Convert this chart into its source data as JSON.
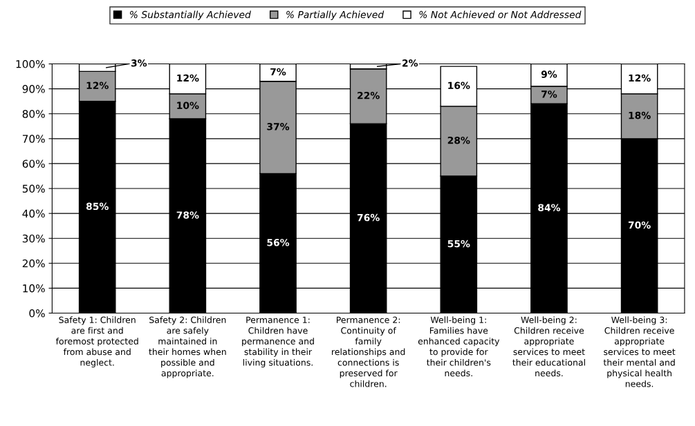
{
  "chart_data": {
    "type": "bar",
    "stacked": true,
    "categories": [
      "Safety 1: Children are first and foremost protected from abuse and neglect.",
      "Safety 2: Children are safely maintained in their homes when possible and appropriate.",
      "Permanence 1: Children have permanence and stability in their living situations.",
      "Permanence 2: Continuity of family relationships and connections is preserved for children.",
      "Well-being 1: Families have enhanced capacity to provide for their children's needs.",
      "Well-being 2: Children receive appropriate services to meet their educational needs.",
      "Well-being 3: Children receive appropriate services to meet their mental and physical health needs."
    ],
    "series": [
      {
        "name": "% Substantially Achieved",
        "color": "#000000",
        "values": [
          85,
          78,
          56,
          76,
          55,
          84,
          70
        ],
        "value_labels": [
          "85%",
          "78%",
          "56%",
          "76%",
          "55%",
          "84%",
          "70%"
        ]
      },
      {
        "name": "% Partially Achieved",
        "color": "#999999",
        "values": [
          12,
          10,
          37,
          22,
          28,
          7,
          18
        ],
        "value_labels": [
          "12%",
          "10%",
          "37%",
          "22%",
          "28%",
          "7%",
          "18%"
        ]
      },
      {
        "name": "% Not Achieved or Not Addressed",
        "color": "#ffffff",
        "values": [
          3,
          12,
          7,
          2,
          16,
          9,
          12
        ],
        "value_labels": [
          "3%",
          "12%",
          "7%",
          "2%",
          "16%",
          "9%",
          "12%"
        ]
      }
    ],
    "ylim": [
      0,
      100
    ],
    "yticks": [
      {
        "value": 0,
        "label": "0%"
      },
      {
        "value": 10,
        "label": "10%"
      },
      {
        "value": 20,
        "label": "20%"
      },
      {
        "value": 30,
        "label": "30%"
      },
      {
        "value": 40,
        "label": "40%"
      },
      {
        "value": 50,
        "label": "50%"
      },
      {
        "value": 60,
        "label": "60%"
      },
      {
        "value": 70,
        "label": "70%"
      },
      {
        "value": 80,
        "label": "80%"
      },
      {
        "value": 90,
        "label": "90%"
      },
      {
        "value": 100,
        "label": "100%"
      }
    ],
    "grid": "y",
    "legend": "top"
  }
}
